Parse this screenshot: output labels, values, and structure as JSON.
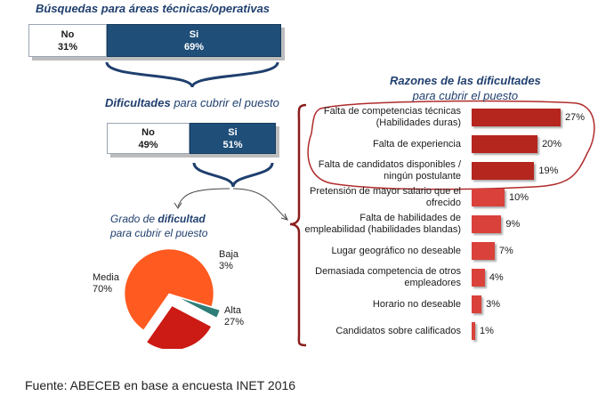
{
  "chart_data": [
    {
      "type": "bar",
      "title_plain": "Búsquedas",
      "title_bold": "para áreas técnicas/operativas",
      "categories": [
        "No",
        "Si"
      ],
      "values": [
        31,
        69
      ],
      "value_labels": [
        "31%",
        "69%"
      ],
      "colors": [
        "#ffffff",
        "#1f4e79"
      ]
    },
    {
      "type": "bar",
      "title_bold": "Dificultades",
      "title_plain": "para cubrir el puesto",
      "categories": [
        "No",
        "Si"
      ],
      "values": [
        49,
        51
      ],
      "value_labels": [
        "49%",
        "51%"
      ],
      "colors": [
        "#ffffff",
        "#1f4e79"
      ]
    },
    {
      "type": "pie",
      "title_line1_plain": "Grado de",
      "title_line1_bold": "dificultad",
      "title_line2": "para cubrir el puesto",
      "categories": [
        "Media",
        "Baja",
        "Alta"
      ],
      "values": [
        70,
        3,
        27
      ],
      "value_labels": [
        "70%",
        "3%",
        "27%"
      ],
      "colors": [
        "#ff5a1f",
        "#2e7d77",
        "#cc1a14"
      ]
    },
    {
      "type": "bar",
      "orientation": "horizontal",
      "title_bold": "Razones de las dificultades",
      "title_sub": "para cubrir el puesto",
      "categories": [
        [
          "Falta de competencias técnicas",
          "(Habilidades duras)"
        ],
        [
          "Falta de experiencia"
        ],
        [
          "Falta de candidatos disponibles /",
          "ningún postulante"
        ],
        [
          "Pretensión de mayor salario que el",
          "ofrecido"
        ],
        [
          "Falta de habilidades de",
          "empleabilidad (habilidades blandas)"
        ],
        [
          "Lugar geográfico no deseable"
        ],
        [
          "Demasiada competencia de otros",
          "empleadores"
        ],
        [
          "Horario no deseable"
        ],
        [
          "Candidatos sobre calificados"
        ]
      ],
      "values": [
        27,
        20,
        19,
        10,
        9,
        7,
        4,
        3,
        1
      ],
      "value_labels": [
        "27%",
        "20%",
        "19%",
        "10%",
        "9%",
        "7%",
        "4%",
        "3%",
        "1%"
      ],
      "highlighted_top": 3,
      "colors": {
        "bar": "#d9413a",
        "highlight": "#b5261e"
      }
    }
  ],
  "source": "Fuente: ABECEB en base a encuesta INET 2016"
}
